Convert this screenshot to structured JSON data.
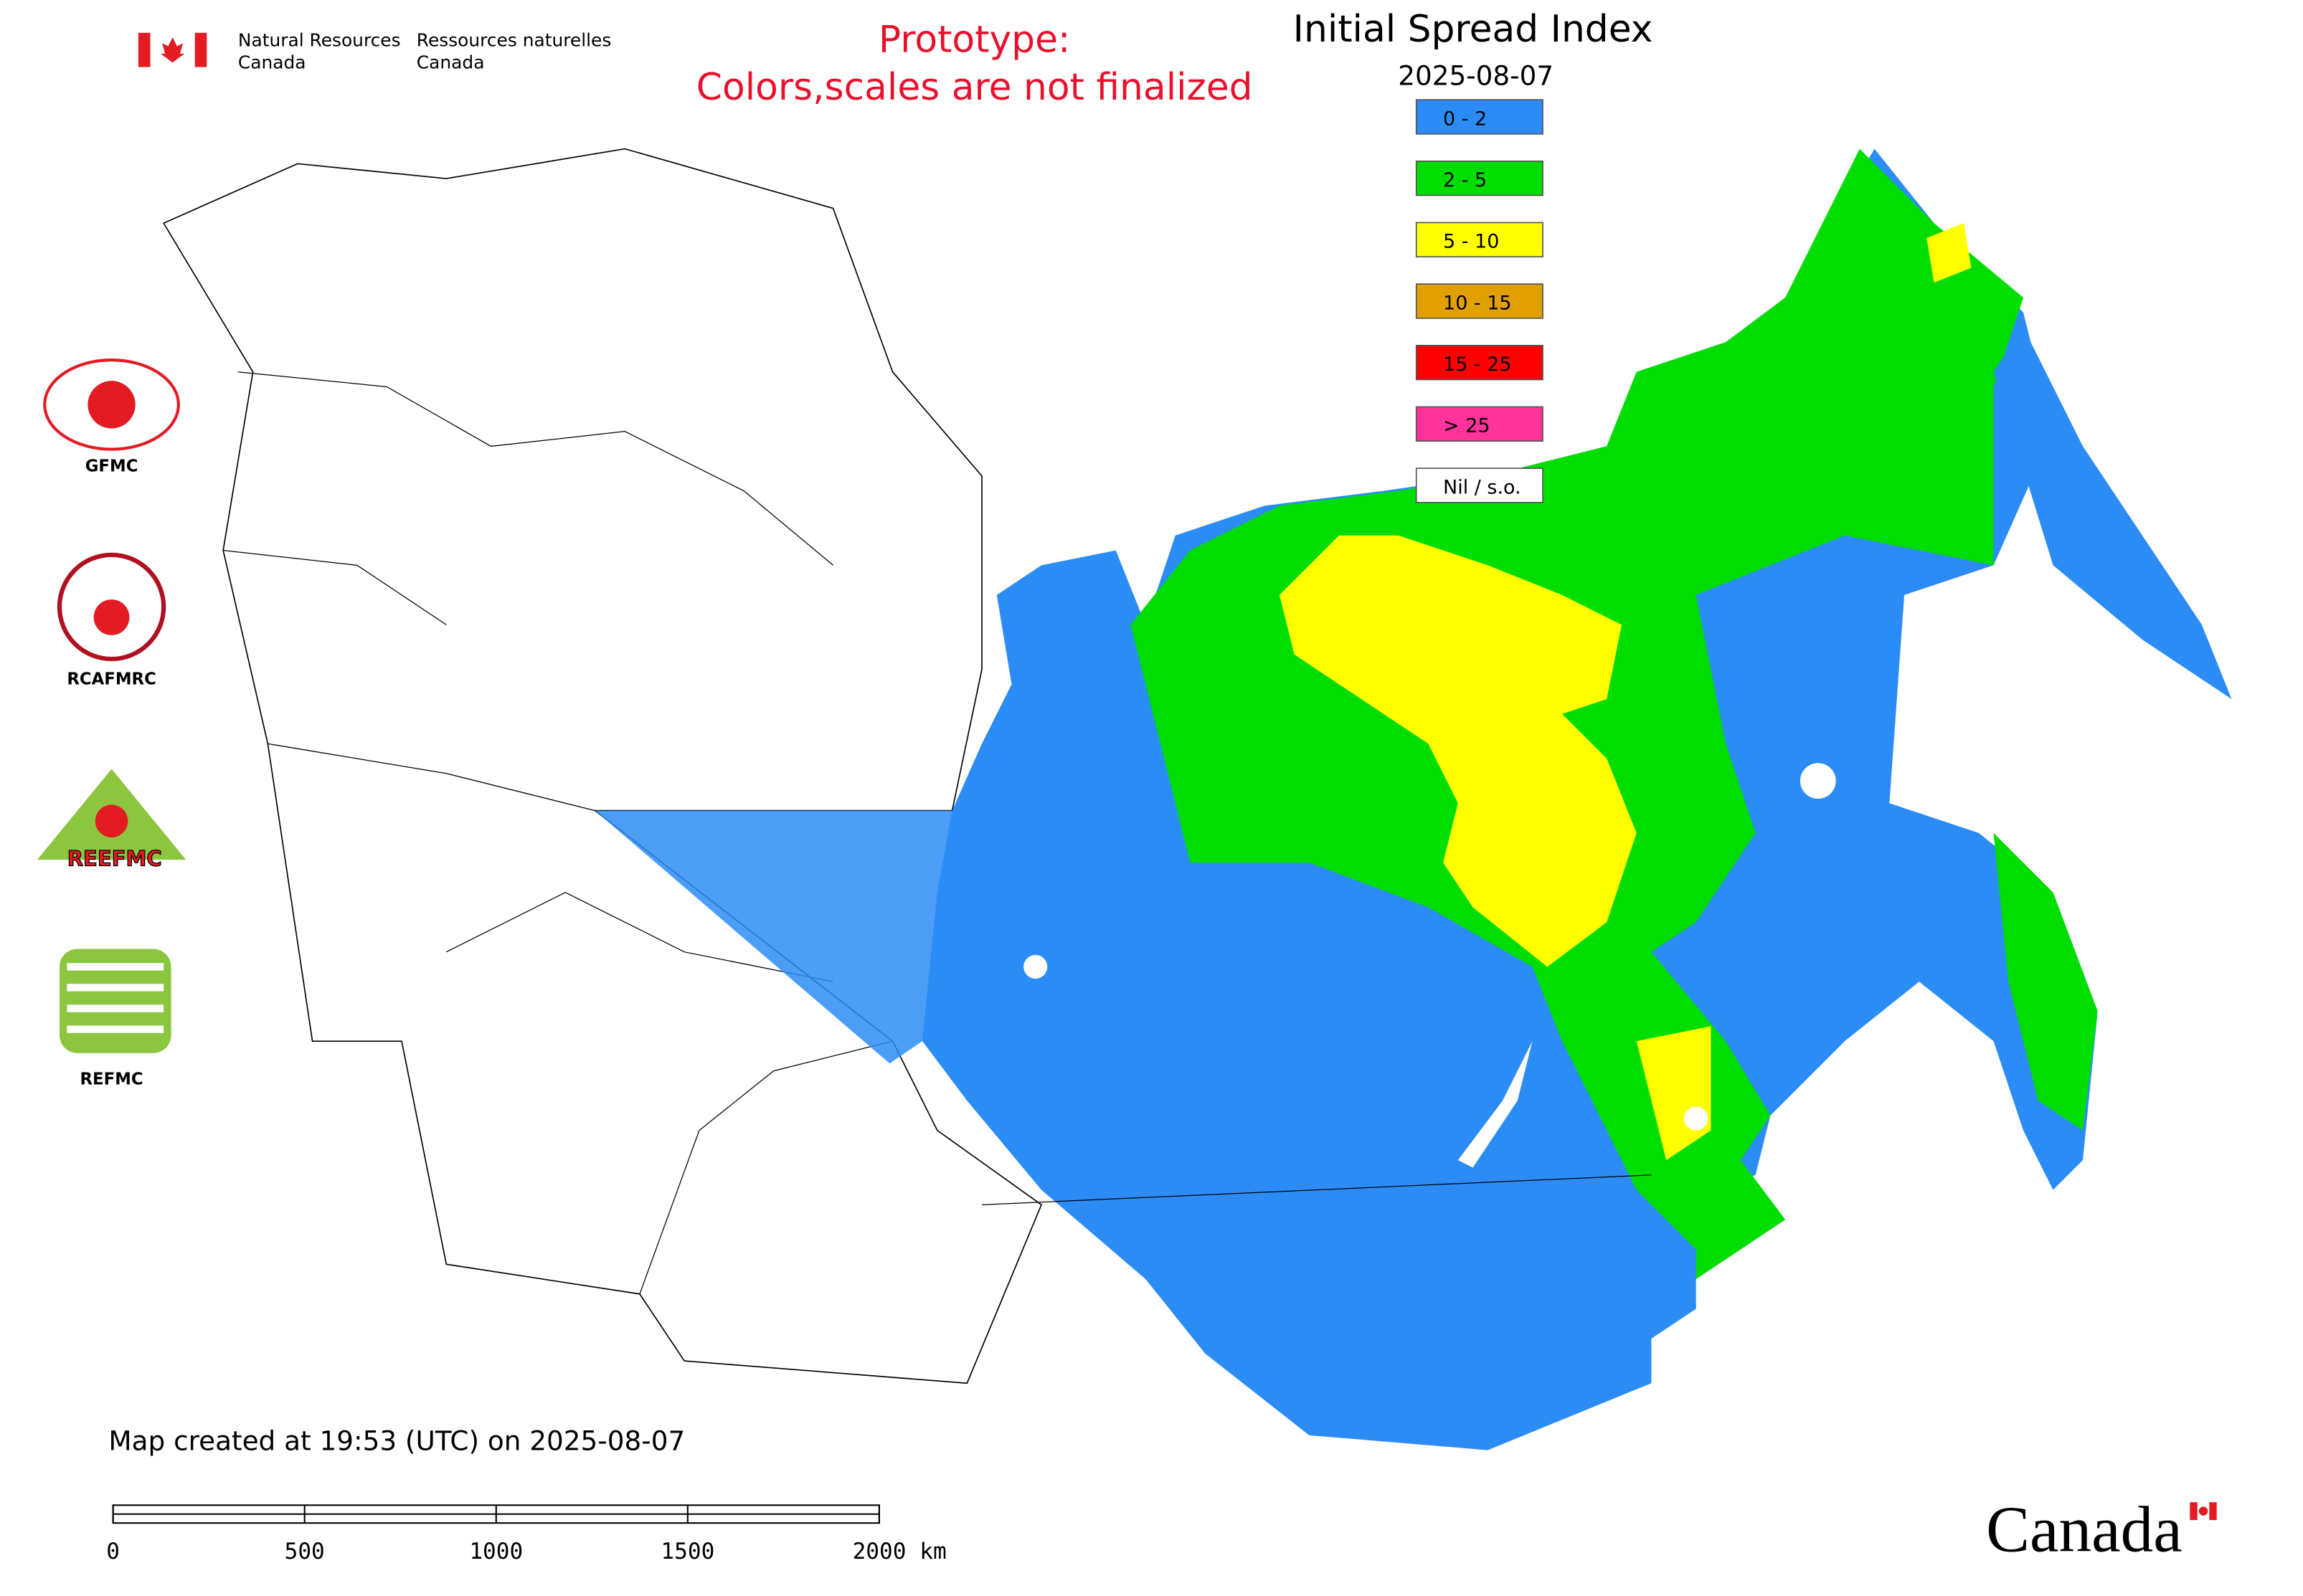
{
  "header": {
    "agency_en": [
      "Natural Resources",
      "Canada"
    ],
    "agency_fr": [
      "Ressources naturelles",
      "Canada"
    ],
    "notice": [
      "Prototype:",
      "Colors,scales are not finalized"
    ]
  },
  "legend": {
    "title": "Initial Spread Index",
    "date": "2025-08-07",
    "classes": [
      {
        "label": "0 - 2",
        "color": "#2b8cf5"
      },
      {
        "label": "2 - 5",
        "color": "#00dd00"
      },
      {
        "label": "5 - 10",
        "color": "#ffff00"
      },
      {
        "label": "10 - 15",
        "color": "#e0a000"
      },
      {
        "label": "15 - 25",
        "color": "#ff0000"
      },
      {
        "label": "> 25",
        "color": "#ff3399"
      },
      {
        "label": "Nil / s.o.",
        "color": "#ffffff"
      }
    ]
  },
  "logos": [
    "GFMC",
    "RCAFMRC",
    "REEFMC",
    "REFMC"
  ],
  "footer": {
    "created": "Map created at 19:53 (UTC) on 2025-08-07",
    "scale": [
      "0",
      "500",
      "1000",
      "1500",
      "2000 km"
    ],
    "wordmark": "Canada"
  }
}
